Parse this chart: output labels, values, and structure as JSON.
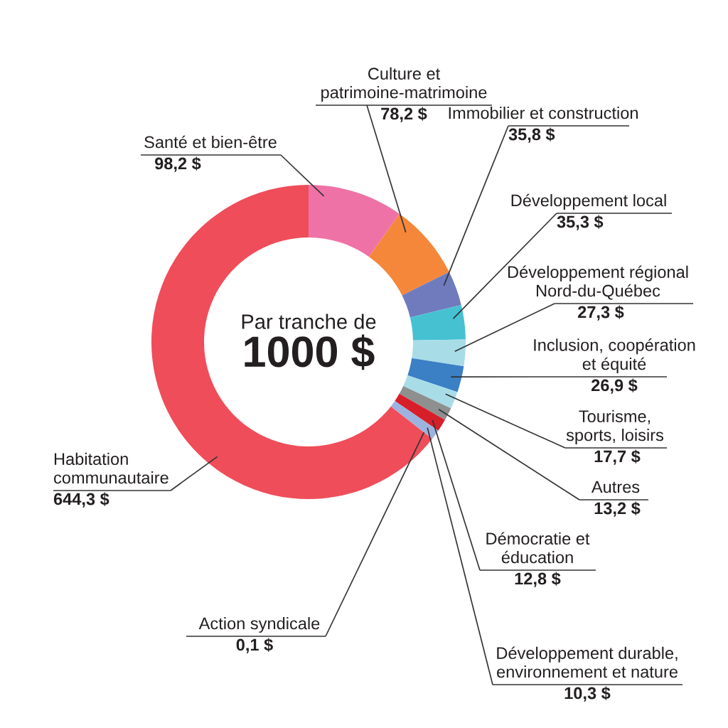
{
  "chart_data": {
    "type": "donut",
    "categories": [
      "Santé et bien-être",
      "Culture et\npatrimoine-matrimoine",
      "Immobilier et construction",
      "Développement local",
      "Développement régional\nNord-du-Québec",
      "Inclusion, coopération\net équité",
      "Tourisme,\nsports, loisirs",
      "Autres",
      "Démocratie et\néducation",
      "Développement durable,\nenvironnement et nature",
      "Action syndicale",
      "Habitation\ncommunautaire"
    ],
    "values": [
      98.2,
      78.2,
      35.8,
      35.3,
      27.3,
      26.9,
      17.7,
      13.2,
      12.8,
      10.3,
      0.1,
      644.3
    ],
    "value_labels": [
      "98,2 $",
      "78,2 $",
      "35,8 $",
      "35,3 $",
      "27,3 $",
      "26,9 $",
      "17,7 $",
      "13,2 $",
      "12,8 $",
      "10,3 $",
      "0,1 $",
      "644,3 $"
    ],
    "colors": [
      "#ef72a6",
      "#f4873a",
      "#6f7bbd",
      "#45c1d2",
      "#a8dde8",
      "#3b7fc4",
      "#a8dde8",
      "#8e9090",
      "#d71f2a",
      "#9cb3e0",
      "#e8907a",
      "#ef4d5a"
    ],
    "annotations": [
      "Par tranche de",
      "1000 $"
    ]
  }
}
